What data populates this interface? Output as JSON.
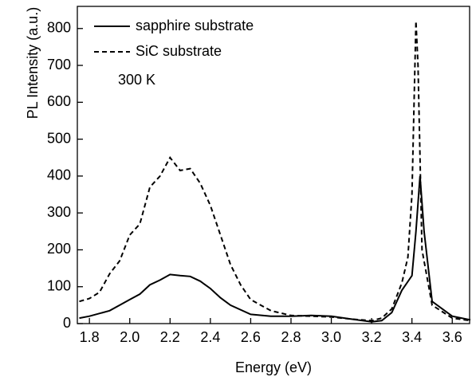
{
  "chart_data": {
    "type": "line",
    "xlabel": "Energy (eV)",
    "ylabel": "PL Intensity (a.u.)",
    "annotation": "300 K",
    "xlim": [
      1.74,
      3.69
    ],
    "ylim": [
      0,
      860
    ],
    "xticks": [
      1.8,
      {
        "value": 2,
        "label": "2.0"
      },
      2.2,
      2.4,
      2.6,
      2.8,
      {
        "value": 3,
        "label": "3.0"
      },
      3.2,
      3.4,
      3.6
    ],
    "yticks": [
      0,
      100,
      200,
      300,
      400,
      500,
      600,
      700,
      800
    ],
    "legend": "upper left",
    "series": [
      {
        "name": "sapphire substrate",
        "color": "#000000",
        "line_style": "solid",
        "x": [
          1.75,
          1.8,
          1.9,
          2.0,
          2.05,
          2.1,
          2.15,
          2.2,
          2.25,
          2.3,
          2.35,
          2.4,
          2.45,
          2.5,
          2.6,
          2.7,
          2.8,
          2.9,
          3.0,
          3.1,
          3.2,
          3.25,
          3.3,
          3.35,
          3.4,
          3.42,
          3.44,
          3.46,
          3.5,
          3.6,
          3.69
        ],
        "values": [
          15,
          20,
          35,
          65,
          80,
          105,
          118,
          133,
          130,
          128,
          115,
          95,
          70,
          50,
          25,
          20,
          20,
          22,
          20,
          12,
          5,
          8,
          30,
          90,
          130,
          250,
          400,
          250,
          60,
          20,
          10
        ]
      },
      {
        "name": "SiC substrate",
        "color": "#000000",
        "line_style": "dashed",
        "x": [
          1.75,
          1.8,
          1.85,
          1.9,
          1.95,
          2.0,
          2.05,
          2.1,
          2.15,
          2.2,
          2.25,
          2.3,
          2.35,
          2.4,
          2.45,
          2.5,
          2.55,
          2.6,
          2.7,
          2.8,
          2.9,
          3.0,
          3.1,
          3.2,
          3.25,
          3.3,
          3.35,
          3.38,
          3.4,
          3.42,
          3.43,
          3.45,
          3.5,
          3.6,
          3.69
        ],
        "values": [
          60,
          68,
          85,
          135,
          170,
          240,
          270,
          370,
          400,
          450,
          415,
          420,
          380,
          320,
          240,
          160,
          105,
          65,
          35,
          22,
          20,
          18,
          12,
          8,
          15,
          40,
          110,
          180,
          350,
          820,
          700,
          200,
          50,
          15,
          8
        ]
      }
    ]
  }
}
